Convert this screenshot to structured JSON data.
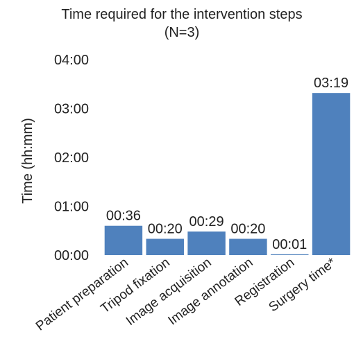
{
  "chart_data": {
    "type": "bar",
    "title": "Time required for the intervention steps",
    "subtitle": "(N=3)",
    "xlabel": "",
    "ylabel": "Time (hh:mm)",
    "unit": "minutes",
    "categories": [
      "Patient preparation",
      "Tripod fixation",
      "Image acquisition",
      "Image annotation",
      "Registration",
      "Surgery time*"
    ],
    "values": [
      36,
      20,
      29,
      20,
      1,
      199
    ],
    "data_labels": [
      "00:36",
      "00:20",
      "00:29",
      "00:20",
      "00:01",
      "03:19"
    ],
    "yticks": [
      0,
      60,
      120,
      180,
      240
    ],
    "ytick_labels": [
      "00:00",
      "01:00",
      "02:00",
      "03:00",
      "04:00"
    ],
    "ylim": [
      0,
      240
    ],
    "grid": false,
    "bar_color": "#4f81bd"
  }
}
